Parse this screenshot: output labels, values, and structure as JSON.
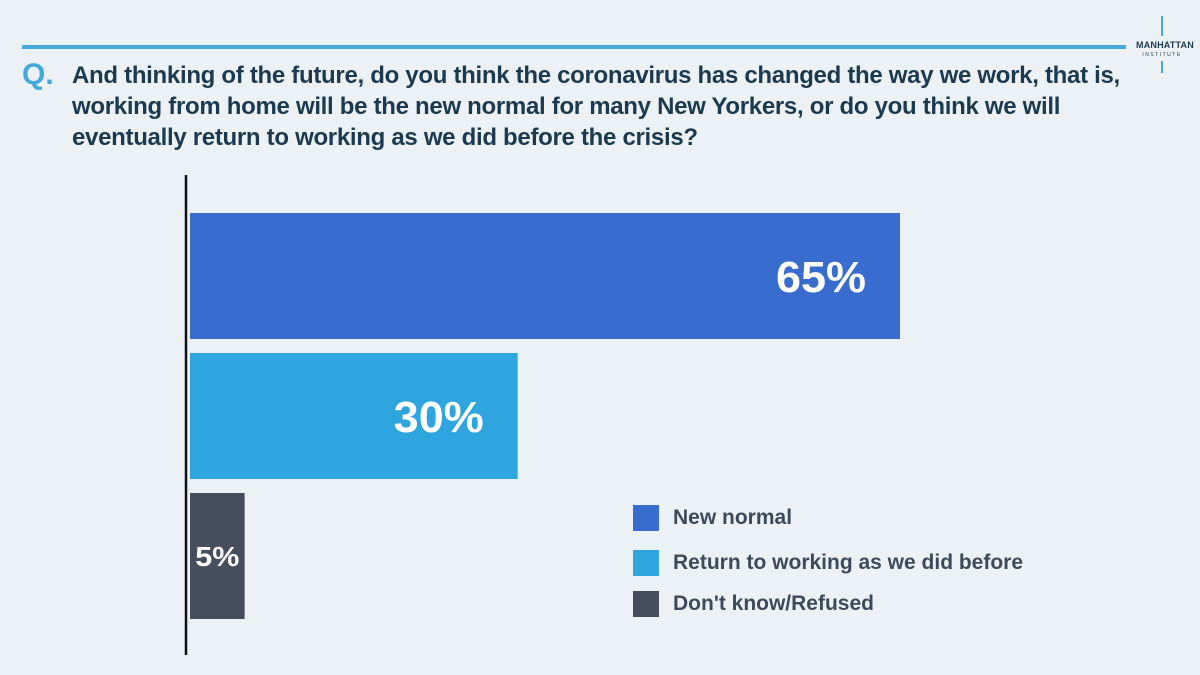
{
  "brand": {
    "name": "MANHATTAN",
    "sub": "INSTITUTE",
    "accent": "#46a9dc"
  },
  "question": {
    "marker": "Q.",
    "text": "And thinking of the future, do you think the coronavirus has changed the way we work, that is, working from home will be the new normal for many New Yorkers, or do you think we will eventually return to working as we did before the crisis?"
  },
  "chart_data": {
    "type": "bar",
    "orientation": "horizontal",
    "categories": [
      "New normal",
      "Return to working as we did before",
      "Don't know/Refused"
    ],
    "values": [
      65,
      30,
      5
    ],
    "value_labels": [
      "65%",
      "30%",
      "5%"
    ],
    "colors": [
      "#386dcf",
      "#2ea5de",
      "#464e5e"
    ],
    "xlim": [
      0,
      100
    ],
    "grid": false,
    "legend_position": "bottom-right"
  },
  "legend": {
    "items": [
      {
        "label": "New normal",
        "color": "#386dcf"
      },
      {
        "label": "Return to working as we did before",
        "color": "#2ea5de"
      },
      {
        "label": "Don't know/Refused",
        "color": "#464e5e"
      }
    ]
  }
}
